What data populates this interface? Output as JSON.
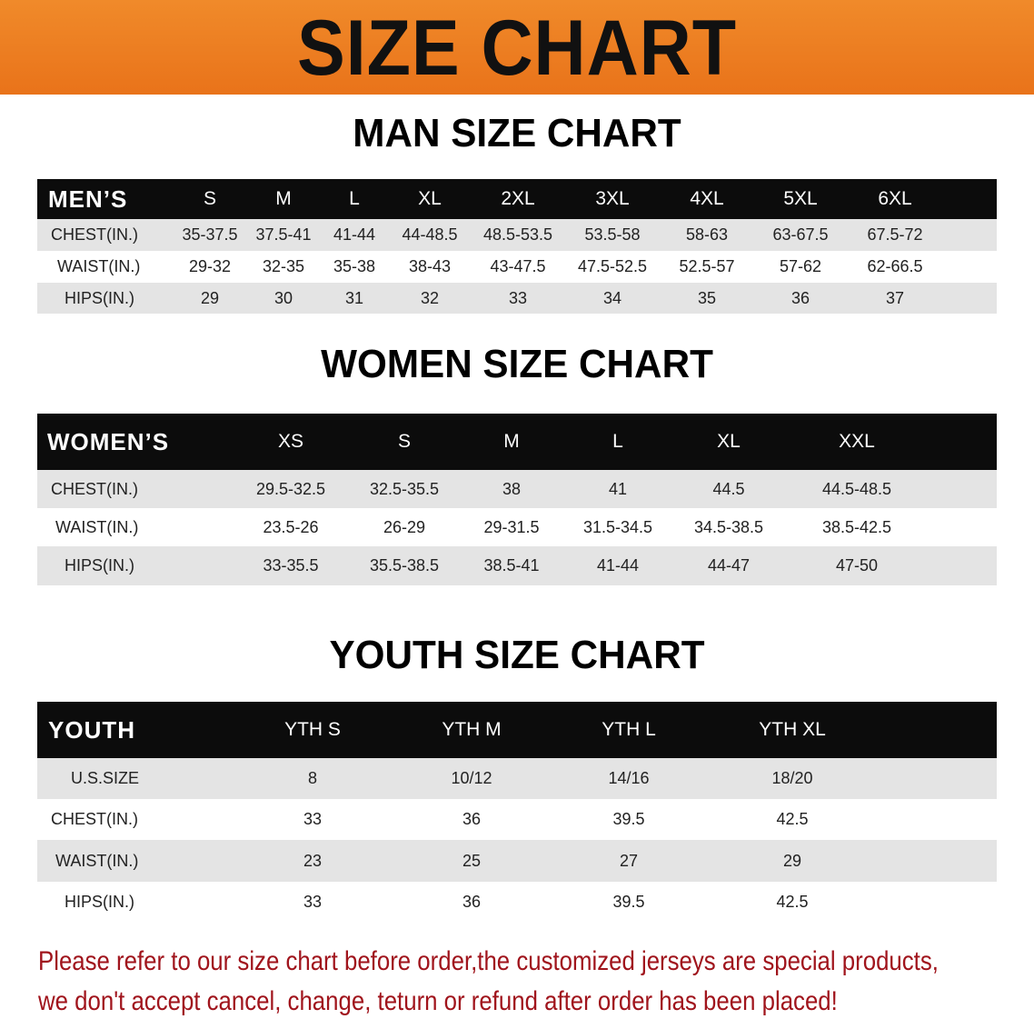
{
  "banner_title": "SIZE CHART",
  "men": {
    "title": "MAN SIZE CHART",
    "header": [
      "MEN’S",
      "S",
      "M",
      "L",
      "XL",
      "2XL",
      "3XL",
      "4XL",
      "5XL",
      "6XL"
    ],
    "rows": [
      [
        "CHEST(IN.)",
        "35-37.5",
        "37.5-41",
        "41-44",
        "44-48.5",
        "48.5-53.5",
        "53.5-58",
        "58-63",
        "63-67.5",
        "67.5-72"
      ],
      [
        "WAIST(IN.)",
        "29-32",
        "32-35",
        "35-38",
        "38-43",
        "43-47.5",
        "47.5-52.5",
        "52.5-57",
        "57-62",
        "62-66.5"
      ],
      [
        "HIPS(IN.)",
        "29",
        "30",
        "31",
        "32",
        "33",
        "34",
        "35",
        "36",
        "37"
      ]
    ]
  },
  "women": {
    "title": "WOMEN SIZE CHART",
    "header": [
      "WOMEN’S",
      "XS",
      "S",
      "M",
      "L",
      "XL",
      "XXL"
    ],
    "rows": [
      [
        "CHEST(IN.)",
        "29.5-32.5",
        "32.5-35.5",
        "38",
        "41",
        "44.5",
        "44.5-48.5"
      ],
      [
        "WAIST(IN.)",
        "23.5-26",
        "26-29",
        "29-31.5",
        "31.5-34.5",
        "34.5-38.5",
        "38.5-42.5"
      ],
      [
        "HIPS(IN.)",
        "33-35.5",
        "35.5-38.5",
        "38.5-41",
        "41-44",
        "44-47",
        "47-50"
      ]
    ]
  },
  "youth": {
    "title": "YOUTH SIZE CHART",
    "header": [
      "YOUTH",
      "YTH S",
      "YTH M",
      "YTH L",
      "YTH XL"
    ],
    "rows": [
      [
        "U.S.SIZE",
        "8",
        "10/12",
        "14/16",
        "18/20"
      ],
      [
        "CHEST(IN.)",
        "33",
        "36",
        "39.5",
        "42.5"
      ],
      [
        "WAIST(IN.)",
        "23",
        "25",
        "27",
        "29"
      ],
      [
        "HIPS(IN.)",
        "33",
        "36",
        "39.5",
        "42.5"
      ]
    ]
  },
  "notice": {
    "line1": "Please refer to our size chart before order,the customized jerseys are special products,",
    "line2": "we don't accept cancel, change, teturn or refund after order has been placed!"
  },
  "colors": {
    "banner": "#ec7d22",
    "header_row": "#0c0c0c",
    "stripe": "#e4e4e4",
    "notice": "#a0141c"
  }
}
